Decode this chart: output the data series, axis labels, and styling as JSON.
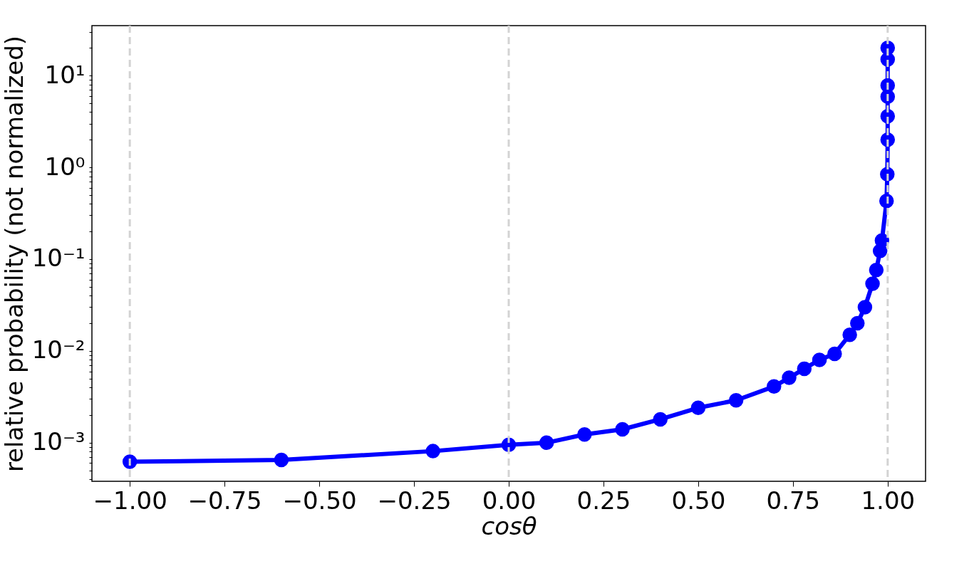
{
  "chart_data": {
    "type": "line",
    "xlabel": "cosθ",
    "ylabel": "relative probability (not normalized)",
    "x": [
      -1.0,
      -0.6,
      -0.2,
      0.0,
      0.1,
      0.2,
      0.3,
      0.4,
      0.5,
      0.6,
      0.7,
      0.74,
      0.78,
      0.82,
      0.86,
      0.9,
      0.92,
      0.94,
      0.96,
      0.97,
      0.98,
      0.985,
      0.997,
      0.999,
      1.0,
      1.0,
      1.0,
      1.0,
      1.0,
      1.0
    ],
    "series": [
      {
        "color": "#0000ff",
        "values": [
          0.00062,
          0.00065,
          0.00081,
          0.00095,
          0.001,
          0.00123,
          0.0014,
          0.0018,
          0.0024,
          0.0029,
          0.0041,
          0.0051,
          0.0064,
          0.008,
          0.0093,
          0.015,
          0.02,
          0.03,
          0.054,
          0.076,
          0.123,
          0.16,
          0.43,
          0.84,
          2.0,
          3.6,
          5.9,
          7.8,
          15,
          20
        ]
      }
    ],
    "log": "y",
    "marker": "circle",
    "line_style": "solid",
    "grid": false,
    "xlim": [
      -1.1,
      1.1
    ],
    "xticks": [
      {
        "value": -1.0,
        "label": "−1.00"
      },
      {
        "value": -0.75,
        "label": "−0.75"
      },
      {
        "value": -0.5,
        "label": "−0.50"
      },
      {
        "value": -0.25,
        "label": "−0.25"
      },
      {
        "value": 0.0,
        "label": "0.00"
      },
      {
        "value": 0.25,
        "label": "0.25"
      },
      {
        "value": 0.5,
        "label": "0.50"
      },
      {
        "value": 0.75,
        "label": "0.75"
      },
      {
        "value": 1.0,
        "label": "1.00"
      }
    ],
    "ylim": [
      0.00038,
      35
    ],
    "yticks": [
      {
        "value": 0.0004,
        "label": null
      },
      {
        "value": 0.0005,
        "label": null
      },
      {
        "value": 0.0006,
        "label": null
      },
      {
        "value": 0.0007,
        "label": null
      },
      {
        "value": 0.0008,
        "label": null
      },
      {
        "value": 0.0009,
        "label": null
      },
      {
        "value": 0.001,
        "label": "10⁻³"
      },
      {
        "value": 0.002,
        "label": null
      },
      {
        "value": 0.003,
        "label": null
      },
      {
        "value": 0.004,
        "label": null
      },
      {
        "value": 0.005,
        "label": null
      },
      {
        "value": 0.006,
        "label": null
      },
      {
        "value": 0.007,
        "label": null
      },
      {
        "value": 0.008,
        "label": null
      },
      {
        "value": 0.009,
        "label": null
      },
      {
        "value": 0.01,
        "label": "10⁻²"
      },
      {
        "value": 0.02,
        "label": null
      },
      {
        "value": 0.03,
        "label": null
      },
      {
        "value": 0.04,
        "label": null
      },
      {
        "value": 0.05,
        "label": null
      },
      {
        "value": 0.06,
        "label": null
      },
      {
        "value": 0.07,
        "label": null
      },
      {
        "value": 0.08,
        "label": null
      },
      {
        "value": 0.09,
        "label": null
      },
      {
        "value": 0.1,
        "label": "10⁻¹"
      },
      {
        "value": 0.2,
        "label": null
      },
      {
        "value": 0.3,
        "label": null
      },
      {
        "value": 0.4,
        "label": null
      },
      {
        "value": 0.5,
        "label": null
      },
      {
        "value": 0.6,
        "label": null
      },
      {
        "value": 0.7,
        "label": null
      },
      {
        "value": 0.8,
        "label": null
      },
      {
        "value": 0.9,
        "label": null
      },
      {
        "value": 1,
        "label": "10⁰"
      },
      {
        "value": 2,
        "label": null
      },
      {
        "value": 3,
        "label": null
      },
      {
        "value": 4,
        "label": null
      },
      {
        "value": 5,
        "label": null
      },
      {
        "value": 6,
        "label": null
      },
      {
        "value": 7,
        "label": null
      },
      {
        "value": 8,
        "label": null
      },
      {
        "value": 9,
        "label": null
      },
      {
        "value": 10,
        "label": "10¹"
      },
      {
        "value": 20,
        "label": null
      },
      {
        "value": 30,
        "label": null
      }
    ],
    "ref_lines": [
      {
        "axis": "x",
        "value": -1.0,
        "color": "#d3d3d3",
        "line_style": "dashed"
      },
      {
        "axis": "x",
        "value": 0.0,
        "color": "#d3d3d3",
        "line_style": "dashed"
      },
      {
        "axis": "x",
        "value": 1.0,
        "color": "#d3d3d3",
        "line_style": "dashed"
      }
    ]
  }
}
